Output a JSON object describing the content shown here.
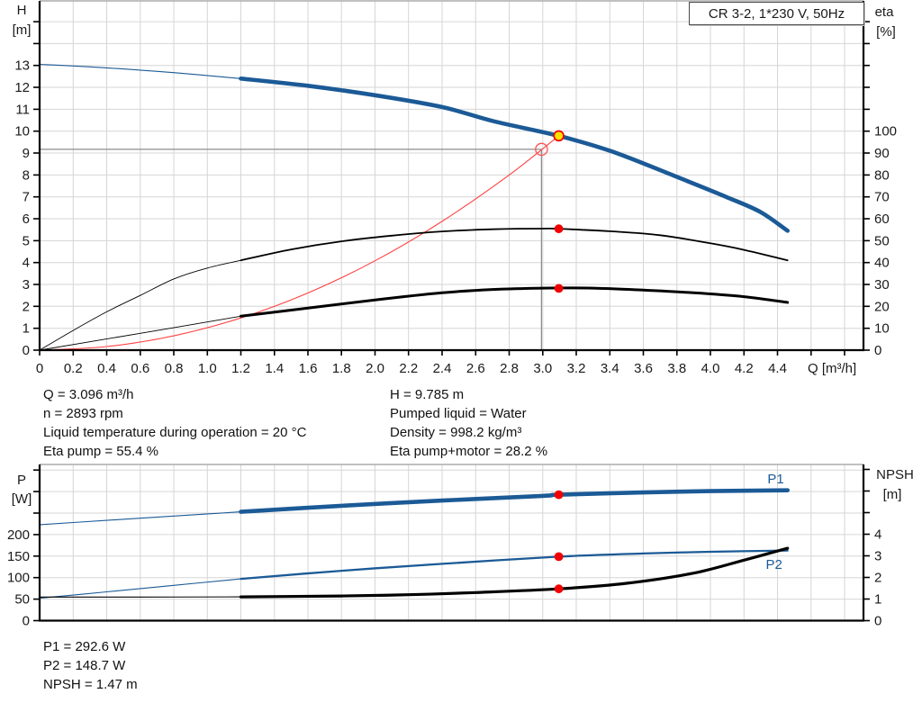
{
  "title_box": {
    "label": "CR 3-2, 1*230 V, 50Hz"
  },
  "info_top": {
    "left": [
      "Q = 3.096 m³/h",
      "n = 2893 rpm",
      "Liquid temperature during operation = 20 °C",
      "Eta pump = 55.4 %"
    ],
    "right": [
      "H = 9.785 m",
      "Pumped liquid = Water",
      "Density = 998.2 kg/m³",
      "Eta pump+motor = 28.2 %"
    ]
  },
  "info_bottom": [
    "P1 = 292.6 W",
    "P2 = 148.7 W",
    "NPSH = 1.47 m"
  ],
  "colors": {
    "curve_blue": "#1b5a96",
    "curve_black": "#000000",
    "system_red": "#ff4040",
    "marker_red": "#f20000",
    "duty_yellow": "#ffdf00",
    "ref_gray": "#8c8c8c",
    "grid": "#d6d6d6",
    "axis": "#000000",
    "text": "#1a1a1a"
  },
  "duty_point": {
    "Q_m3h": 3.096,
    "H_m": 9.785,
    "eta_pump_pct": 55.4,
    "eta_pump_motor_pct": 28.2,
    "P1_W": 292.6,
    "P2_W": 148.7,
    "NPSH_m": 1.47
  },
  "chart_data": [
    {
      "id": "head-efficiency",
      "type": "line",
      "title": "CR 3-2, 1*230 V, 50Hz",
      "x_axis": {
        "title": "Q [m³/h]",
        "min": 0,
        "max": 4.91,
        "grid_step": 0.2,
        "tick_labels": [
          "0",
          "0.2",
          "0.4",
          "0.6",
          "0.8",
          "1.0",
          "1.2",
          "1.4",
          "1.6",
          "1.8",
          "2.0",
          "2.2",
          "2.4",
          "2.6",
          "2.8",
          "3.0",
          "3.2",
          "3.4",
          "3.6",
          "3.8",
          "4.0",
          "4.2",
          "4.4"
        ]
      },
      "left_axis": {
        "title": [
          "H",
          "[m]"
        ],
        "unit": "m",
        "min": 0,
        "max": 15.9,
        "grid_step": 1,
        "tick_labels": [
          "0",
          "1",
          "2",
          "3",
          "4",
          "5",
          "6",
          "7",
          "8",
          "9",
          "10",
          "11",
          "12",
          "13"
        ]
      },
      "right_axis": {
        "title": [
          "eta",
          "[%]"
        ],
        "unit": "%",
        "min": 0,
        "max": 159,
        "grid_step": 10,
        "tick_labels": [
          "0",
          "10",
          "20",
          "30",
          "40",
          "50",
          "60",
          "70",
          "80",
          "90",
          "100"
        ]
      },
      "series": [
        {
          "name": "system-curve",
          "axis": "right_is_false",
          "value_axis": "left",
          "color": "#ff4040",
          "width": 1.1,
          "points": [
            [
              0,
              0
            ],
            [
              0.4,
              0.163
            ],
            [
              0.8,
              0.653
            ],
            [
              1.2,
              1.47
            ],
            [
              1.6,
              2.61
            ],
            [
              2.0,
              4.08
            ],
            [
              2.4,
              5.88
            ],
            [
              2.8,
              8.0
            ],
            [
              3.096,
              9.785
            ]
          ]
        },
        {
          "name": "eta-pump-curve-lead",
          "value_axis": "right",
          "color": "#000000",
          "width": 0.9,
          "points": [
            [
              0,
              0
            ],
            [
              0.2,
              9
            ],
            [
              0.4,
              17.5
            ],
            [
              0.6,
              25
            ],
            [
              0.8,
              32.5
            ],
            [
              1.0,
              37.5
            ],
            [
              1.2,
              41
            ]
          ]
        },
        {
          "name": "eta-pump-curve",
          "value_axis": "right",
          "color": "#000000",
          "width": 1.8,
          "points": [
            [
              1.2,
              41
            ],
            [
              1.5,
              46
            ],
            [
              1.8,
              49.7
            ],
            [
              2.1,
              52.3
            ],
            [
              2.4,
              54.2
            ],
            [
              2.7,
              55.2
            ],
            [
              3.0,
              55.5
            ],
            [
              3.096,
              55.4
            ],
            [
              3.4,
              54.3
            ],
            [
              3.7,
              52.5
            ],
            [
              4.0,
              48.8
            ],
            [
              4.2,
              45.8
            ],
            [
              4.46,
              41.0
            ]
          ]
        },
        {
          "name": "eta-pump-motor-curve-lead",
          "value_axis": "right",
          "color": "#000000",
          "width": 0.9,
          "points": [
            [
              0,
              0
            ],
            [
              0.6,
              7.7
            ],
            [
              1.2,
              15.5
            ]
          ]
        },
        {
          "name": "eta-pump-motor-curve",
          "value_axis": "right",
          "color": "#000000",
          "width": 3.0,
          "points": [
            [
              1.2,
              15.5
            ],
            [
              1.6,
              19.2
            ],
            [
              2.0,
              22.9
            ],
            [
              2.4,
              26.2
            ],
            [
              2.7,
              27.7
            ],
            [
              3.0,
              28.3
            ],
            [
              3.3,
              28.3
            ],
            [
              3.6,
              27.4
            ],
            [
              3.9,
              26.2
            ],
            [
              4.2,
              24.4
            ],
            [
              4.46,
              21.8
            ]
          ]
        },
        {
          "name": "head-curve-lead",
          "value_axis": "left",
          "color": "#1b5a96",
          "width": 1.1,
          "points": [
            [
              0,
              13.05
            ],
            [
              0.4,
              12.89
            ],
            [
              0.8,
              12.67
            ],
            [
              1.2,
              12.4
            ]
          ]
        },
        {
          "name": "head-curve",
          "value_axis": "left",
          "color": "#1b5a96",
          "width": 4.6,
          "points": [
            [
              1.2,
              12.4
            ],
            [
              1.6,
              12.07
            ],
            [
              2.0,
              11.64
            ],
            [
              2.4,
              11.1
            ],
            [
              2.71,
              10.45
            ],
            [
              3.096,
              9.785
            ],
            [
              3.41,
              9.08
            ],
            [
              3.8,
              7.91
            ],
            [
              4.1,
              6.98
            ],
            [
              4.3,
              6.3
            ],
            [
              4.46,
              5.45
            ]
          ]
        }
      ],
      "reference_lines": [
        {
          "name": "spec-head-line",
          "value_axis": "left",
          "points": [
            [
              0,
              9.17
            ],
            [
              2.993,
              9.17
            ]
          ]
        },
        {
          "name": "spec-flow-line",
          "value_axis": "left",
          "points": [
            [
              2.993,
              9.17
            ],
            [
              2.993,
              0
            ]
          ]
        }
      ],
      "markers": [
        {
          "name": "spec-point-ring",
          "shape": "ring",
          "value_axis": "left",
          "q": 2.993,
          "value": 9.17
        },
        {
          "name": "eta-pump-operating-dot",
          "shape": "dot",
          "value_axis": "right",
          "q": 3.096,
          "value": 55.4
        },
        {
          "name": "eta-pump-motor-operating-dot",
          "shape": "dot",
          "value_axis": "right",
          "q": 3.096,
          "value": 28.2
        },
        {
          "name": "duty-point",
          "shape": "duty",
          "value_axis": "left",
          "q": 3.096,
          "value": 9.785
        }
      ],
      "series_labels": []
    },
    {
      "id": "power-npsh",
      "type": "line",
      "x_axis": {
        "title": "",
        "min": 0,
        "max": 4.91,
        "grid_step": 0.2,
        "tick_labels": []
      },
      "left_axis": {
        "title": [
          "P",
          "[W]"
        ],
        "unit": "W",
        "min": 0,
        "max": 363,
        "grid_step": 50,
        "tick_labels": [
          "0",
          "50",
          "100",
          "150",
          "200"
        ]
      },
      "right_axis": {
        "title": [
          "NPSH",
          "[m]"
        ],
        "unit": "m",
        "min": 0,
        "max": 7.2,
        "grid_step": 1,
        "tick_labels": [
          "0",
          "1",
          "2",
          "3",
          "4"
        ]
      },
      "series": [
        {
          "name": "p1-curve-lead",
          "value_axis": "left",
          "color": "#1b5a96",
          "width": 1.1,
          "points": [
            [
              0,
              223
            ],
            [
              0.4,
              233
            ],
            [
              0.8,
              243
            ],
            [
              1.2,
              253
            ]
          ]
        },
        {
          "name": "p1-curve",
          "value_axis": "left",
          "color": "#1b5a96",
          "width": 4.6,
          "points": [
            [
              1.2,
              253
            ],
            [
              1.8,
              267
            ],
            [
              2.4,
              279
            ],
            [
              3.0,
              290
            ],
            [
              3.096,
              292.6
            ],
            [
              3.6,
              298
            ],
            [
              4.0,
              301
            ],
            [
              4.46,
              303
            ]
          ]
        },
        {
          "name": "p2-curve-lead",
          "value_axis": "left",
          "color": "#1b5a96",
          "width": 1.1,
          "points": [
            [
              0,
              52
            ],
            [
              0.4,
              67
            ],
            [
              0.8,
              82
            ],
            [
              1.2,
              97
            ]
          ]
        },
        {
          "name": "p2-curve",
          "value_axis": "left",
          "color": "#1b5a96",
          "width": 2.3,
          "points": [
            [
              1.2,
              97
            ],
            [
              1.8,
              116
            ],
            [
              2.4,
              132
            ],
            [
              3.096,
              148.7
            ],
            [
              3.6,
              156
            ],
            [
              4.0,
              160
            ],
            [
              4.46,
              163
            ]
          ]
        },
        {
          "name": "npsh-curve-lead",
          "value_axis": "right",
          "color": "#000000",
          "width": 1.1,
          "points": [
            [
              0,
              1.09
            ],
            [
              0.6,
              1.09
            ],
            [
              1.2,
              1.1
            ]
          ]
        },
        {
          "name": "npsh-curve",
          "value_axis": "right",
          "color": "#000000",
          "width": 3.2,
          "points": [
            [
              1.2,
              1.1
            ],
            [
              1.8,
              1.14
            ],
            [
              2.2,
              1.2
            ],
            [
              2.6,
              1.3
            ],
            [
              3.096,
              1.47
            ],
            [
              3.5,
              1.73
            ],
            [
              3.9,
              2.2
            ],
            [
              4.2,
              2.8
            ],
            [
              4.46,
              3.35
            ]
          ]
        }
      ],
      "reference_lines": [],
      "markers": [
        {
          "name": "p1-operating-dot",
          "shape": "dot",
          "value_axis": "left",
          "q": 3.096,
          "value": 292.6
        },
        {
          "name": "p2-operating-dot",
          "shape": "dot",
          "value_axis": "left",
          "q": 3.096,
          "value": 148.7
        },
        {
          "name": "npsh-operating-dot",
          "shape": "dot",
          "value_axis": "right",
          "q": 3.096,
          "value": 1.47
        }
      ],
      "series_labels": [
        {
          "text": "P1",
          "q": 4.34,
          "value_axis": "left",
          "value": 319,
          "color": "#1b5a96"
        },
        {
          "text": "P2",
          "q": 4.33,
          "value_axis": "left",
          "value": 120,
          "color": "#1b5a96"
        }
      ]
    }
  ]
}
